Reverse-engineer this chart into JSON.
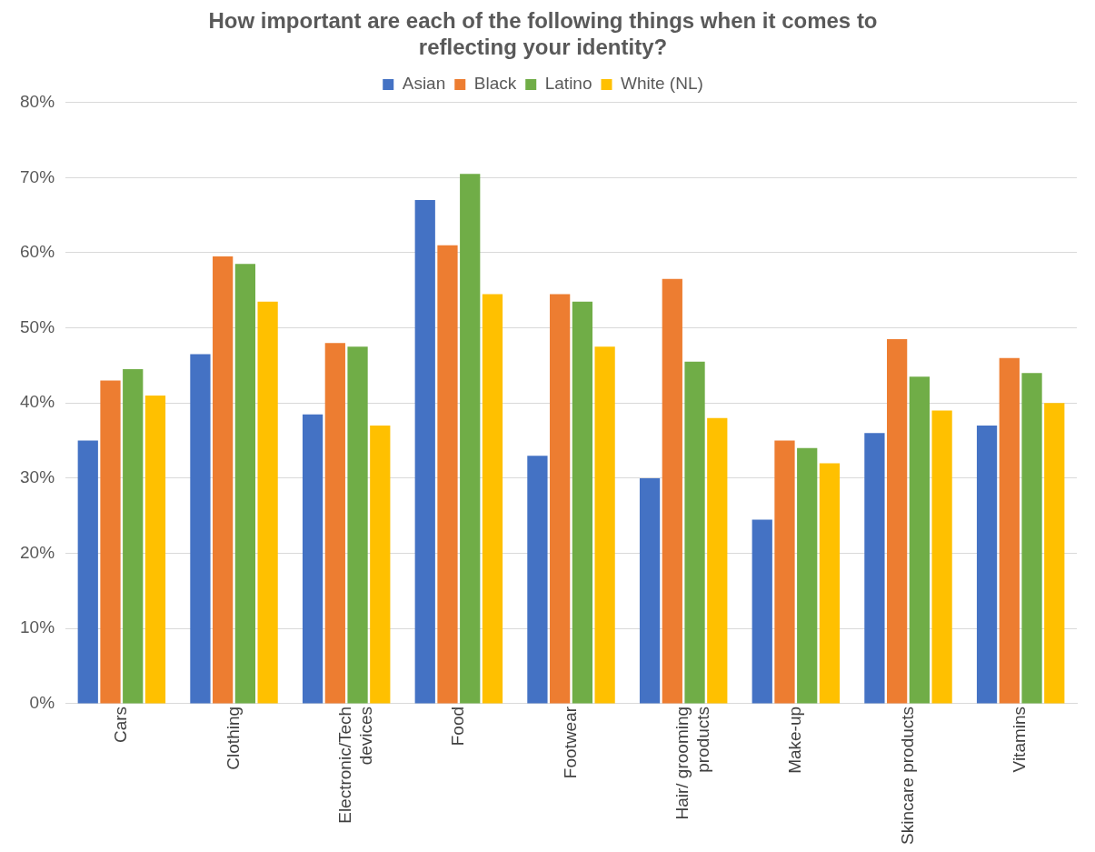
{
  "chart_data": {
    "type": "bar",
    "title": "How important are each of the following things when it comes to reflecting your identity?",
    "categories": [
      "Cars",
      "Clothing",
      "Electronic/Tech devices",
      "Food",
      "Footwear",
      "Hair/ grooming products",
      "Make-up",
      "Skincare products",
      "Vitamins"
    ],
    "series": [
      {
        "name": "Asian",
        "color": "#4472c4",
        "values": [
          35,
          46.5,
          38.5,
          67,
          33,
          30,
          24.5,
          36,
          37
        ]
      },
      {
        "name": "Black",
        "color": "#ed7d31",
        "values": [
          43,
          59.5,
          48,
          61,
          54.5,
          56.5,
          35,
          48.5,
          46
        ]
      },
      {
        "name": "Latino",
        "color": "#70ad47",
        "values": [
          44.5,
          58.5,
          47.5,
          70.5,
          53.5,
          45.5,
          34,
          43.5,
          44
        ]
      },
      {
        "name": "White (NL)",
        "color": "#ffc000",
        "values": [
          41,
          53.5,
          37,
          54.5,
          47.5,
          38,
          32,
          39,
          40
        ]
      }
    ],
    "ylim": [
      0,
      80
    ],
    "yticks": [
      {
        "value": 0,
        "label": "0%"
      },
      {
        "value": 10,
        "label": "10%"
      },
      {
        "value": 20,
        "label": "20%"
      },
      {
        "value": 30,
        "label": "30%"
      },
      {
        "value": 40,
        "label": "40%"
      },
      {
        "value": 50,
        "label": "50%"
      },
      {
        "value": 60,
        "label": "60%"
      },
      {
        "value": 70,
        "label": "70%"
      },
      {
        "value": 80,
        "label": "80%"
      }
    ],
    "grid": "y",
    "legend": "top"
  }
}
